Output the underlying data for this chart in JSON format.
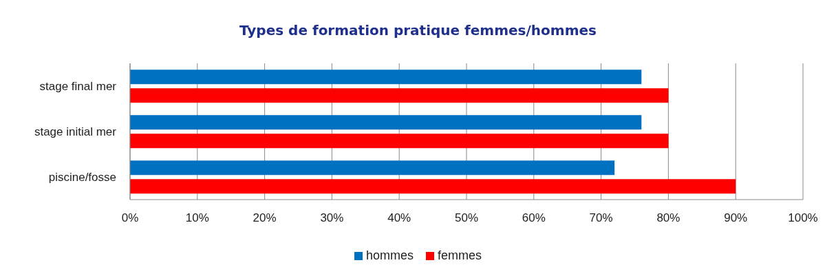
{
  "chart_data": {
    "type": "bar",
    "orientation": "horizontal",
    "title": "Types de formation pratique femmes/hommes",
    "categories": [
      "stage final mer",
      "stage initial mer",
      "piscine/fosse"
    ],
    "series": [
      {
        "name": "hommes",
        "color": "#0070c0",
        "values": [
          76,
          76,
          72
        ]
      },
      {
        "name": "femmes",
        "color": "#ff0000",
        "values": [
          80,
          80,
          90
        ]
      }
    ],
    "xlim": [
      0,
      100
    ],
    "xticks": [
      {
        "value": 0,
        "label": "0%"
      },
      {
        "value": 10,
        "label": "10%"
      },
      {
        "value": 20,
        "label": "20%"
      },
      {
        "value": 30,
        "label": "30%"
      },
      {
        "value": 40,
        "label": "40%"
      },
      {
        "value": 50,
        "label": "50%"
      },
      {
        "value": 60,
        "label": "60%"
      },
      {
        "value": 70,
        "label": "70%"
      },
      {
        "value": 80,
        "label": "80%"
      },
      {
        "value": 90,
        "label": "90%"
      },
      {
        "value": 100,
        "label": "100%"
      }
    ],
    "grid": "x",
    "legend": "bottom"
  }
}
